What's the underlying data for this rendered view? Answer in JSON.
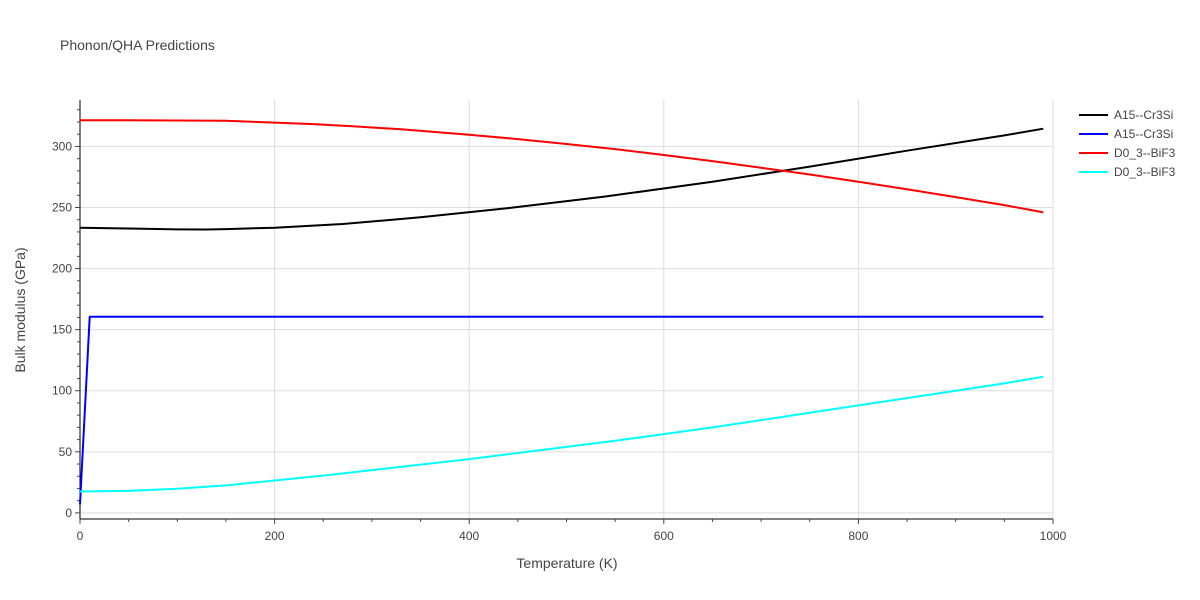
{
  "chart_data": {
    "type": "line",
    "title": "Phonon/QHA Predictions",
    "xlabel": "Temperature (K)",
    "ylabel": "Bulk modulus (GPa)",
    "xlim": [
      0,
      1000
    ],
    "ylim": [
      -5,
      338
    ],
    "xticks": [
      0,
      200,
      400,
      600,
      800,
      1000
    ],
    "yticks": [
      0,
      50,
      100,
      150,
      200,
      250,
      300
    ],
    "grid": true,
    "legend_position": "top-right",
    "series": [
      {
        "name": "A15--Cr3Si",
        "color": "#000000",
        "x": [
          0,
          50,
          100,
          130,
          150,
          200,
          270,
          350,
          440,
          540,
          650,
          750,
          850,
          950,
          990
        ],
        "y": [
          233.5,
          232.8,
          232.1,
          232.0,
          232.3,
          233.5,
          236.5,
          242.0,
          249.5,
          259.0,
          271.0,
          283.5,
          296.5,
          309.0,
          314.5
        ]
      },
      {
        "name": "A15--Cr3Si",
        "color": "#0000ff",
        "x": [
          0,
          10,
          20,
          100,
          300,
          500,
          700,
          900,
          990
        ],
        "y": [
          7,
          160.5,
          160.5,
          160.5,
          160.5,
          160.5,
          160.5,
          160.5,
          160.5
        ]
      },
      {
        "name": "D0_3--BiF3",
        "color": "#ff0000",
        "x": [
          0,
          50,
          100,
          150,
          200,
          240,
          280,
          330,
          400,
          450,
          500,
          550,
          600,
          650,
          700,
          750,
          800,
          850,
          900,
          950,
          990
        ],
        "y": [
          321.5,
          321.4,
          321.2,
          321.0,
          319.5,
          318.3,
          316.5,
          314.0,
          309.5,
          306.0,
          302.0,
          297.8,
          293.0,
          288.0,
          282.5,
          277.0,
          271.0,
          265.0,
          258.5,
          252.0,
          246.0
        ]
      },
      {
        "name": "D0_3--BiF3",
        "color": "#00ffff",
        "x": [
          0,
          50,
          100,
          150,
          200,
          250,
          300,
          350,
          400,
          450,
          500,
          550,
          600,
          650,
          700,
          750,
          800,
          850,
          900,
          950,
          990
        ],
        "y": [
          17.5,
          18.0,
          19.8,
          22.5,
          26.5,
          30.5,
          35.0,
          39.5,
          44.0,
          49.0,
          54.0,
          59.0,
          64.5,
          70.0,
          76.0,
          82.0,
          88.0,
          94.0,
          100.0,
          106.0,
          111.5
        ]
      }
    ]
  }
}
